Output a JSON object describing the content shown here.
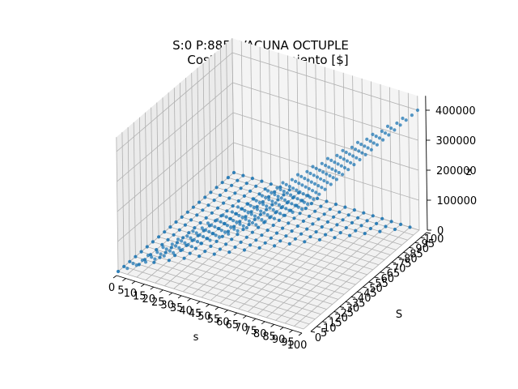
{
  "chart_data": {
    "type": "scatter",
    "projection": "3d",
    "title": "S:0 P:885: VACUNA OCTUPLE",
    "subtitle": "Costo almacenamiento [$]",
    "xlabel": "s",
    "ylabel": "S",
    "zlabel": "z",
    "xlim": [
      0,
      100
    ],
    "ylim": [
      0,
      100
    ],
    "zlim": [
      0,
      400000
    ],
    "grid": true,
    "marker_color": "#1f77b4",
    "xticks": [
      "0",
      "5",
      "10",
      "15",
      "20",
      "25",
      "30",
      "35",
      "40",
      "45",
      "50",
      "55",
      "60",
      "65",
      "70",
      "75",
      "80",
      "85",
      "90",
      "95",
      "100"
    ],
    "yticks": [
      "0",
      "5",
      "10",
      "15",
      "20",
      "25",
      "30",
      "35",
      "40",
      "45",
      "50",
      "55",
      "60",
      "65",
      "70",
      "75",
      "80",
      "85",
      "90",
      "95",
      "100"
    ],
    "zticks": [
      "0",
      "100000",
      "200000",
      "300000",
      "400000"
    ],
    "grid_step": 5,
    "surface_rule": "z = 0 when S > s; z = 4000 * s when S <= s"
  }
}
